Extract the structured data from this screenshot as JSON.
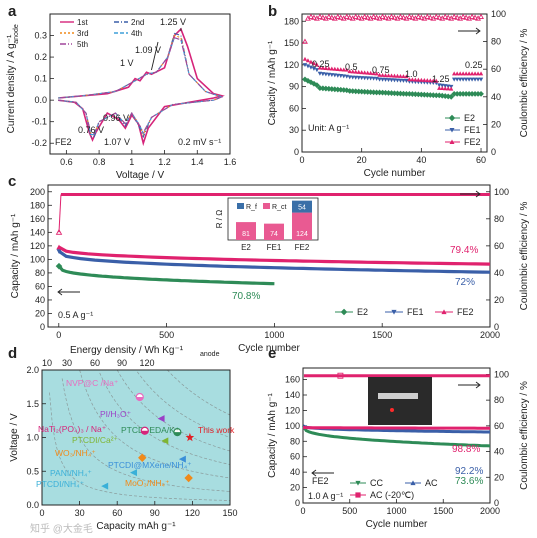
{
  "watermark": "知乎 @大金毛",
  "chart_data": [
    {
      "panel": "a",
      "type": "line",
      "xlabel": "Voltage / V",
      "ylabel": "Current density / A g⁻¹",
      "ylabel_sub": "anode",
      "xlim": [
        0.5,
        1.6
      ],
      "ylim": [
        -0.25,
        0.4
      ],
      "xticks": [
        0.6,
        0.8,
        1.0,
        1.2,
        1.4,
        1.6
      ],
      "yticks": [
        -0.2,
        -0.1,
        0.0,
        0.1,
        0.2,
        0.3
      ],
      "legend": [
        "1st",
        "2nd",
        "3rd",
        "4th",
        "5th"
      ],
      "annotations": [
        "1.25 V",
        "1.09 V",
        "1 V",
        "0.76 V",
        "0.96 V",
        "1.07 V",
        "FE2",
        "0.2 mV s⁻¹"
      ],
      "series": [
        {
          "name": "1st",
          "color": "#d6247a",
          "dash": "",
          "points": [
            [
              0.55,
              0.0
            ],
            [
              0.65,
              -0.01
            ],
            [
              0.7,
              -0.04
            ],
            [
              0.74,
              -0.15
            ],
            [
              0.76,
              -0.185
            ],
            [
              0.78,
              -0.15
            ],
            [
              0.85,
              -0.06
            ],
            [
              0.92,
              -0.09
            ],
            [
              0.96,
              -0.13
            ],
            [
              1.0,
              -0.07
            ],
            [
              1.04,
              -0.11
            ],
            [
              1.07,
              -0.2
            ],
            [
              1.1,
              -0.13
            ],
            [
              1.2,
              -0.03
            ],
            [
              1.35,
              -0.01
            ],
            [
              1.5,
              0.01
            ],
            [
              1.55,
              0.02
            ],
            [
              1.5,
              0.03
            ],
            [
              1.4,
              0.1
            ],
            [
              1.34,
              0.25
            ],
            [
              1.3,
              0.33
            ],
            [
              1.26,
              0.3
            ],
            [
              1.2,
              0.15
            ],
            [
              1.12,
              0.12
            ],
            [
              1.09,
              0.13
            ],
            [
              1.05,
              0.09
            ],
            [
              1.02,
              0.1
            ],
            [
              0.98,
              0.06
            ],
            [
              0.85,
              0.03
            ],
            [
              0.7,
              0.02
            ],
            [
              0.55,
              0.01
            ]
          ]
        },
        {
          "name": "2nd",
          "color": "#3a5fa8",
          "dash": "5,2,1,2",
          "points": [
            [
              0.55,
              0.0
            ],
            [
              0.66,
              -0.01
            ],
            [
              0.72,
              -0.06
            ],
            [
              0.75,
              -0.17
            ],
            [
              0.77,
              -0.17
            ],
            [
              0.8,
              -0.1
            ],
            [
              0.9,
              -0.06
            ],
            [
              0.96,
              -0.12
            ],
            [
              1.0,
              -0.06
            ],
            [
              1.05,
              -0.13
            ],
            [
              1.07,
              -0.17
            ],
            [
              1.12,
              -0.08
            ],
            [
              1.25,
              -0.02
            ],
            [
              1.5,
              0.0
            ],
            [
              1.55,
              0.015
            ],
            [
              1.45,
              0.04
            ],
            [
              1.35,
              0.12
            ],
            [
              1.3,
              0.3
            ],
            [
              1.26,
              0.31
            ],
            [
              1.22,
              0.2
            ],
            [
              1.15,
              0.13
            ],
            [
              1.09,
              0.12
            ],
            [
              1.02,
              0.09
            ],
            [
              0.9,
              0.04
            ],
            [
              0.7,
              0.02
            ],
            [
              0.55,
              0.01
            ]
          ]
        },
        {
          "name": "3rd",
          "color": "#f08a1a",
          "dash": "2,2",
          "points": [
            [
              0.55,
              0.0
            ],
            [
              0.66,
              -0.01
            ],
            [
              0.72,
              -0.06
            ],
            [
              0.75,
              -0.16
            ],
            [
              0.77,
              -0.16
            ],
            [
              0.8,
              -0.1
            ],
            [
              0.9,
              -0.06
            ],
            [
              0.96,
              -0.11
            ],
            [
              1.0,
              -0.06
            ],
            [
              1.05,
              -0.12
            ],
            [
              1.07,
              -0.16
            ],
            [
              1.12,
              -0.08
            ],
            [
              1.25,
              -0.02
            ],
            [
              1.5,
              0.0
            ],
            [
              1.55,
              0.015
            ],
            [
              1.45,
              0.04
            ],
            [
              1.35,
              0.12
            ],
            [
              1.3,
              0.29
            ],
            [
              1.26,
              0.3
            ],
            [
              1.22,
              0.2
            ],
            [
              1.15,
              0.13
            ],
            [
              1.09,
              0.12
            ],
            [
              1.02,
              0.09
            ],
            [
              0.9,
              0.04
            ],
            [
              0.7,
              0.02
            ],
            [
              0.55,
              0.01
            ]
          ]
        },
        {
          "name": "4th",
          "color": "#3f9fd8",
          "dash": "4,2",
          "points": [
            [
              0.55,
              0.0
            ],
            [
              0.66,
              -0.01
            ],
            [
              0.72,
              -0.06
            ],
            [
              0.75,
              -0.16
            ],
            [
              0.77,
              -0.16
            ],
            [
              0.8,
              -0.1
            ],
            [
              0.9,
              -0.06
            ],
            [
              0.96,
              -0.11
            ],
            [
              1.0,
              -0.06
            ],
            [
              1.05,
              -0.12
            ],
            [
              1.07,
              -0.155
            ],
            [
              1.12,
              -0.08
            ],
            [
              1.25,
              -0.02
            ],
            [
              1.5,
              0.0
            ],
            [
              1.55,
              0.015
            ],
            [
              1.45,
              0.04
            ],
            [
              1.35,
              0.12
            ],
            [
              1.3,
              0.28
            ],
            [
              1.26,
              0.29
            ],
            [
              1.22,
              0.2
            ],
            [
              1.15,
              0.13
            ],
            [
              1.09,
              0.12
            ],
            [
              1.02,
              0.09
            ],
            [
              0.9,
              0.04
            ],
            [
              0.7,
              0.02
            ],
            [
              0.55,
              0.01
            ]
          ]
        },
        {
          "name": "5th",
          "color": "#a0469b",
          "dash": "6,2,1,2,1,2",
          "points": [
            [
              0.55,
              0.0
            ],
            [
              0.66,
              -0.01
            ],
            [
              0.72,
              -0.06
            ],
            [
              0.75,
              -0.155
            ],
            [
              0.77,
              -0.155
            ],
            [
              0.8,
              -0.1
            ],
            [
              0.9,
              -0.06
            ],
            [
              0.96,
              -0.11
            ],
            [
              1.0,
              -0.06
            ],
            [
              1.05,
              -0.12
            ],
            [
              1.07,
              -0.15
            ],
            [
              1.12,
              -0.08
            ],
            [
              1.25,
              -0.02
            ],
            [
              1.5,
              0.0
            ],
            [
              1.55,
              0.015
            ],
            [
              1.45,
              0.04
            ],
            [
              1.35,
              0.12
            ],
            [
              1.3,
              0.28
            ],
            [
              1.26,
              0.29
            ],
            [
              1.22,
              0.2
            ],
            [
              1.15,
              0.13
            ],
            [
              1.09,
              0.12
            ],
            [
              1.02,
              0.09
            ],
            [
              0.9,
              0.04
            ],
            [
              0.7,
              0.02
            ],
            [
              0.55,
              0.01
            ]
          ]
        }
      ]
    },
    {
      "panel": "b",
      "type": "scatter",
      "xlabel": "Cycle number",
      "ylabel": "Capacity / mAh g⁻¹",
      "ylabel2": "Coulombic efficiency / %",
      "xlim": [
        0,
        62
      ],
      "ylim": [
        0,
        190
      ],
      "ylim2": [
        0,
        100
      ],
      "xticks": [
        0,
        20,
        40,
        60
      ],
      "yticks": [
        0,
        30,
        60,
        90,
        120,
        150,
        180
      ],
      "yticks2": [
        0,
        20,
        40,
        60,
        80,
        100
      ],
      "legend": [
        "E2",
        "FE1",
        "FE2"
      ],
      "rate_labels": [
        "0.25",
        "0.5",
        "0.75",
        "1.0",
        "1.25",
        "0.25"
      ],
      "unit_text": "Unit: A g⁻¹",
      "series": [
        {
          "name": "E2",
          "color": "#2e8b57",
          "segments": [
            [
              1,
              5,
              100,
              92
            ],
            [
              6,
              15,
              88,
              85
            ],
            [
              16,
              25,
              84,
              82
            ],
            [
              26,
              35,
              82,
              80
            ],
            [
              36,
              45,
              80,
              78
            ],
            [
              46,
              50,
              78,
              76
            ],
            [
              51,
              60,
              80,
              80
            ]
          ]
        },
        {
          "name": "FE1",
          "color": "#3a5fa8",
          "segments": [
            [
              1,
              5,
              120,
              113
            ],
            [
              6,
              15,
              108,
              104
            ],
            [
              16,
              25,
              103,
              101
            ],
            [
              26,
              35,
              100,
              98
            ],
            [
              36,
              45,
              97,
              95
            ],
            [
              46,
              50,
              92,
              90
            ],
            [
              51,
              60,
              100,
              100
            ]
          ]
        },
        {
          "name": "FE2",
          "color": "#e0226e",
          "segments": [
            [
              1,
              5,
              128,
              120
            ],
            [
              6,
              15,
              116,
              113
            ],
            [
              16,
              25,
              111,
              108
            ],
            [
              26,
              35,
              106,
              104
            ],
            [
              36,
              45,
              100,
              98
            ],
            [
              46,
              50,
              88,
              87
            ],
            [
              51,
              60,
              108,
              108
            ]
          ]
        }
      ],
      "ce_series": {
        "color": "#e0226e",
        "start": 80,
        "value": 98
      }
    },
    {
      "panel": "c",
      "type": "scatter",
      "xlabel": "Cycle number",
      "ylabel": "Capacity / mAh g⁻¹",
      "ylabel2": "Coulombic efficiency / %",
      "xlim": [
        -50,
        2000
      ],
      "ylim": [
        0,
        210
      ],
      "ylim2": [
        0,
        105
      ],
      "xticks": [
        0,
        500,
        1000,
        1500,
        2000
      ],
      "yticks": [
        0,
        20,
        40,
        60,
        80,
        100,
        120,
        140,
        160,
        180,
        200
      ],
      "yticks2": [
        0,
        20,
        40,
        60,
        80,
        100
      ],
      "legend": [
        "E2",
        "FE1",
        "FE2"
      ],
      "current_text": "0.5 A g⁻¹",
      "retentions": [
        "79.4%",
        "72%",
        "70.8%"
      ],
      "series": [
        {
          "name": "E2",
          "color": "#2e8b57",
          "end": 1000,
          "start_val": 90,
          "end_val": 64
        },
        {
          "name": "FE1",
          "color": "#3a5fa8",
          "end": 2000,
          "start_val": 112,
          "end_val": 81
        },
        {
          "name": "FE2",
          "color": "#e0226e",
          "end": 2000,
          "start_val": 118,
          "end_val": 93
        }
      ],
      "inset": {
        "type": "bar",
        "ylabel": "R / Ω",
        "legend": [
          "R_f",
          "R_ct"
        ],
        "categories": [
          "E2",
          "FE1",
          "FE2"
        ],
        "rf": [
          0,
          0,
          54
        ],
        "rct": [
          81,
          74,
          124
        ],
        "labels_rct": [
          "81",
          "74",
          "124"
        ],
        "labels_rf": [
          "54"
        ]
      }
    },
    {
      "panel": "d",
      "type": "scatter",
      "xlabel": "Capacity mAh g⁻¹",
      "ylabel": "Voltage / V",
      "top_label": "Energy density / Wh Kg⁻¹",
      "top_label_sub": "anode",
      "xlim": [
        0,
        150
      ],
      "ylim": [
        0,
        2.0
      ],
      "xticks": [
        0,
        30,
        60,
        90,
        120,
        150
      ],
      "yticks": [
        0.0,
        0.5,
        1.0,
        1.5,
        2.0
      ],
      "top_ticks": [
        "10",
        "30",
        "60",
        "90",
        "120"
      ],
      "points": [
        {
          "label": "NVP@C /Na⁺",
          "x": 78,
          "y": 1.6,
          "color": "#e86cc0",
          "marker": "circle-half"
        },
        {
          "label": "PI/H₃O⁺",
          "x": 95,
          "y": 1.28,
          "color": "#9b3fc7",
          "marker": "tri-left"
        },
        {
          "label": "PTCDI-EDA/K⁺",
          "x": 108,
          "y": 1.08,
          "color": "#2e8b57",
          "marker": "circle-half"
        },
        {
          "label": "NaTi₂(PO₄)₃ / Na⁺",
          "x": 82,
          "y": 1.1,
          "color": "#d6247a",
          "marker": "circle-half"
        },
        {
          "label": "This work",
          "x": 118,
          "y": 1.0,
          "color": "#e21f26",
          "marker": "star"
        },
        {
          "label": "PTCDI/Ca²⁺",
          "x": 98,
          "y": 0.95,
          "color": "#7fb534",
          "marker": "tri-left"
        },
        {
          "label": "WO₃/NH₄⁺",
          "x": 80,
          "y": 0.7,
          "color": "#f08a1a",
          "marker": "diamond"
        },
        {
          "label": "PTCDI@MXene/NH₄⁺",
          "x": 112,
          "y": 0.68,
          "color": "#3a8fd8",
          "marker": "tri-left"
        },
        {
          "label": "PANI/NH₄⁺",
          "x": 73,
          "y": 0.48,
          "color": "#3ab0d8",
          "marker": "tri-left"
        },
        {
          "label": "MoO₃/NH₄⁺",
          "x": 117,
          "y": 0.4,
          "color": "#f08a1a",
          "marker": "diamond"
        },
        {
          "label": "PTCDI/NH₄⁺",
          "x": 50,
          "y": 0.28,
          "color": "#3ab0d8",
          "marker": "tri-left"
        }
      ]
    },
    {
      "panel": "e",
      "type": "scatter",
      "xlabel": "Cycle number",
      "ylabel": "Capacity / mAh g⁻¹",
      "ylabel2": "Coulombic efficiency / %",
      "xlim": [
        0,
        2000
      ],
      "ylim": [
        0,
        175
      ],
      "ylim2": [
        0,
        105
      ],
      "xticks": [
        0,
        500,
        1000,
        1500,
        2000
      ],
      "yticks": [
        0,
        20,
        40,
        60,
        80,
        100,
        120,
        140,
        160
      ],
      "yticks2": [
        0,
        20,
        40,
        60,
        80,
        100
      ],
      "legend": [
        "CC",
        "AC",
        "AC (-20℃)"
      ],
      "cell_label": "FE2",
      "current_text": "1.0 A g⁻¹",
      "retentions": [
        "98.8%",
        "92.2%",
        "73.6%"
      ],
      "series": [
        {
          "name": "CC",
          "color": "#2e8b57",
          "start_val": 100,
          "end_val": 74
        },
        {
          "name": "AC",
          "color": "#3a5fa8",
          "start_val": 100,
          "end_val": 92
        },
        {
          "name": "AC (-20℃)",
          "color": "#e0226e",
          "start_val": 98,
          "end_val": 97
        }
      ]
    }
  ]
}
